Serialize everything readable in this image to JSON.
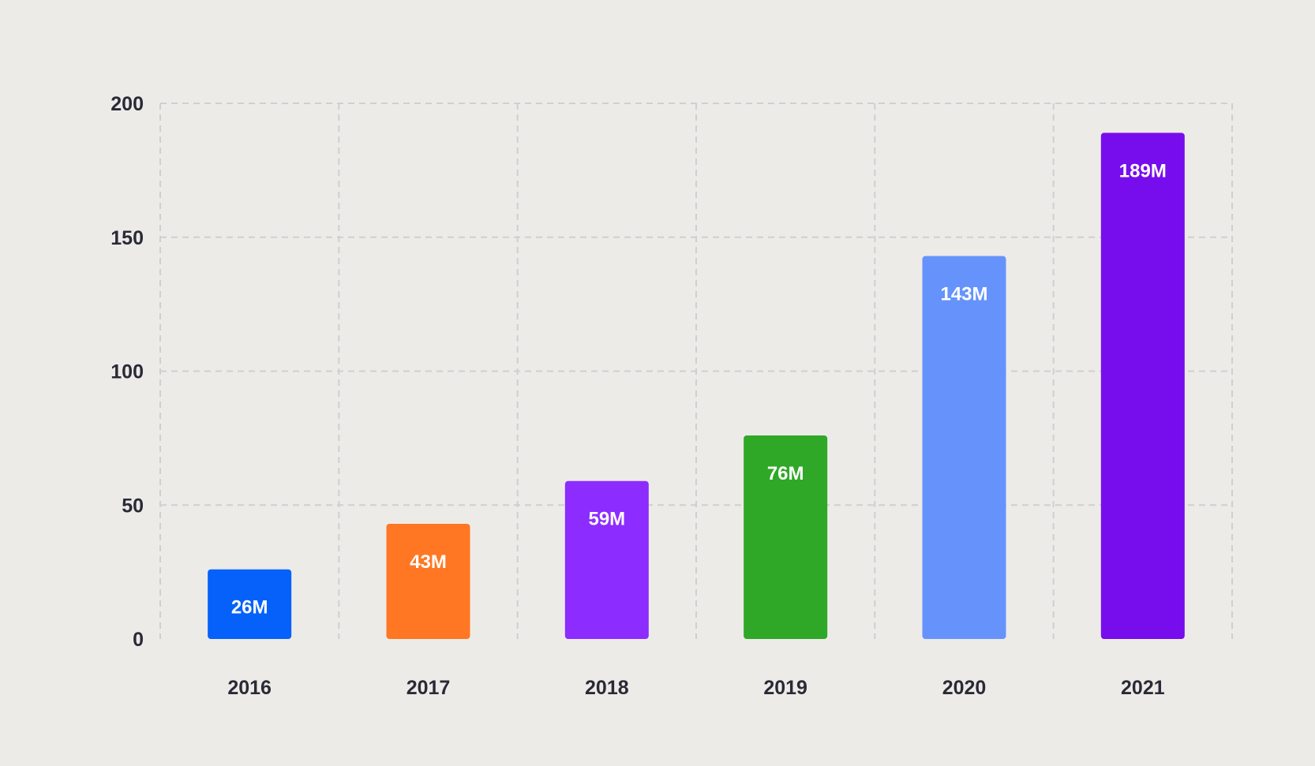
{
  "chart_data": {
    "type": "bar",
    "title": "",
    "xlabel": "",
    "ylabel": "",
    "categories": [
      "2016",
      "2017",
      "2018",
      "2019",
      "2020",
      "2021"
    ],
    "values": [
      26,
      43,
      59,
      76,
      143,
      189
    ],
    "data_labels": [
      "26M",
      "43M",
      "59M",
      "76M",
      "143M",
      "189M"
    ],
    "colors": [
      "#0561fa",
      "#ff7722",
      "#8c2cff",
      "#2fa827",
      "#6693fb",
      "#770ded"
    ],
    "ylim": [
      0,
      200
    ],
    "yticks": [
      0,
      50,
      100,
      150,
      200
    ],
    "ytick_labels": [
      "0",
      "50",
      "100",
      "150",
      "200"
    ],
    "grid": true,
    "grid_style": "dashed",
    "legend": "none"
  }
}
